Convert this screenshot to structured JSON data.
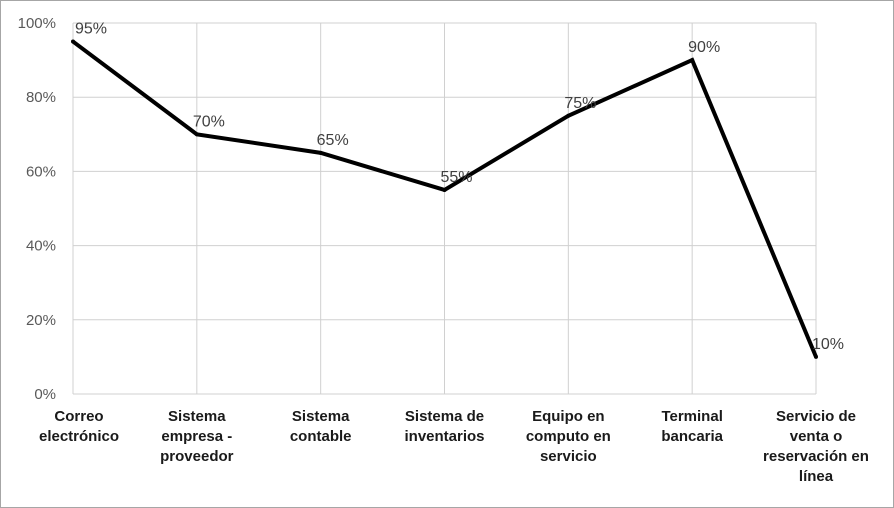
{
  "chart_data": {
    "type": "line",
    "categories": [
      [
        "Correo",
        "electrónico"
      ],
      [
        "Sistema",
        "empresa -",
        "proveedor"
      ],
      [
        "Sistema",
        "contable"
      ],
      [
        "Sistema de",
        "inventarios"
      ],
      [
        "Equipo en",
        "computo en",
        "servicio"
      ],
      [
        "Terminal",
        "bancaria"
      ],
      [
        "Servicio de",
        "venta o",
        "reservación en",
        "línea"
      ]
    ],
    "series": [
      {
        "values": [
          95,
          70,
          65,
          55,
          75,
          90,
          10
        ],
        "data_labels": [
          "95%",
          "70%",
          "65%",
          "55%",
          "75%",
          "90%",
          "10%"
        ],
        "color": "#000000"
      }
    ],
    "y_ticks": [
      "0%",
      "20%",
      "40%",
      "60%",
      "80%",
      "100%"
    ],
    "ylim": [
      0,
      100
    ],
    "grid": true,
    "legend": "none",
    "title": "",
    "xlabel": "",
    "ylabel": "",
    "gridline_color": "#d0d0d0"
  }
}
